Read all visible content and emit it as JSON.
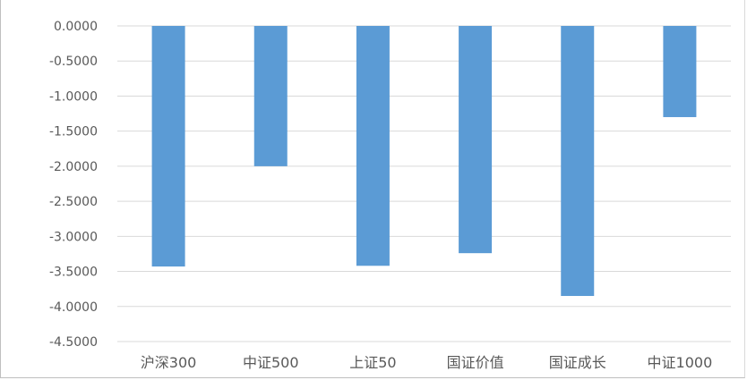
{
  "chart_data": {
    "type": "bar",
    "title": "",
    "xlabel": "",
    "ylabel": "",
    "categories": [
      "沪深300",
      "中证500",
      "上证50",
      "国证价值",
      "国证成长",
      "中证1000"
    ],
    "values": [
      -3.43,
      -2.0,
      -3.42,
      -3.24,
      -3.85,
      -1.3
    ],
    "ylim": [
      -4.5,
      0
    ],
    "ytick_step": 0.5,
    "ytick_labels": [
      "0.0000",
      "-0.5000",
      "-1.0000",
      "-1.5000",
      "-2.0000",
      "-2.5000",
      "-3.0000",
      "-3.5000",
      "-4.0000",
      "-4.5000"
    ],
    "grid": true,
    "legend": "none",
    "bar_color": "#5b9bd5"
  }
}
